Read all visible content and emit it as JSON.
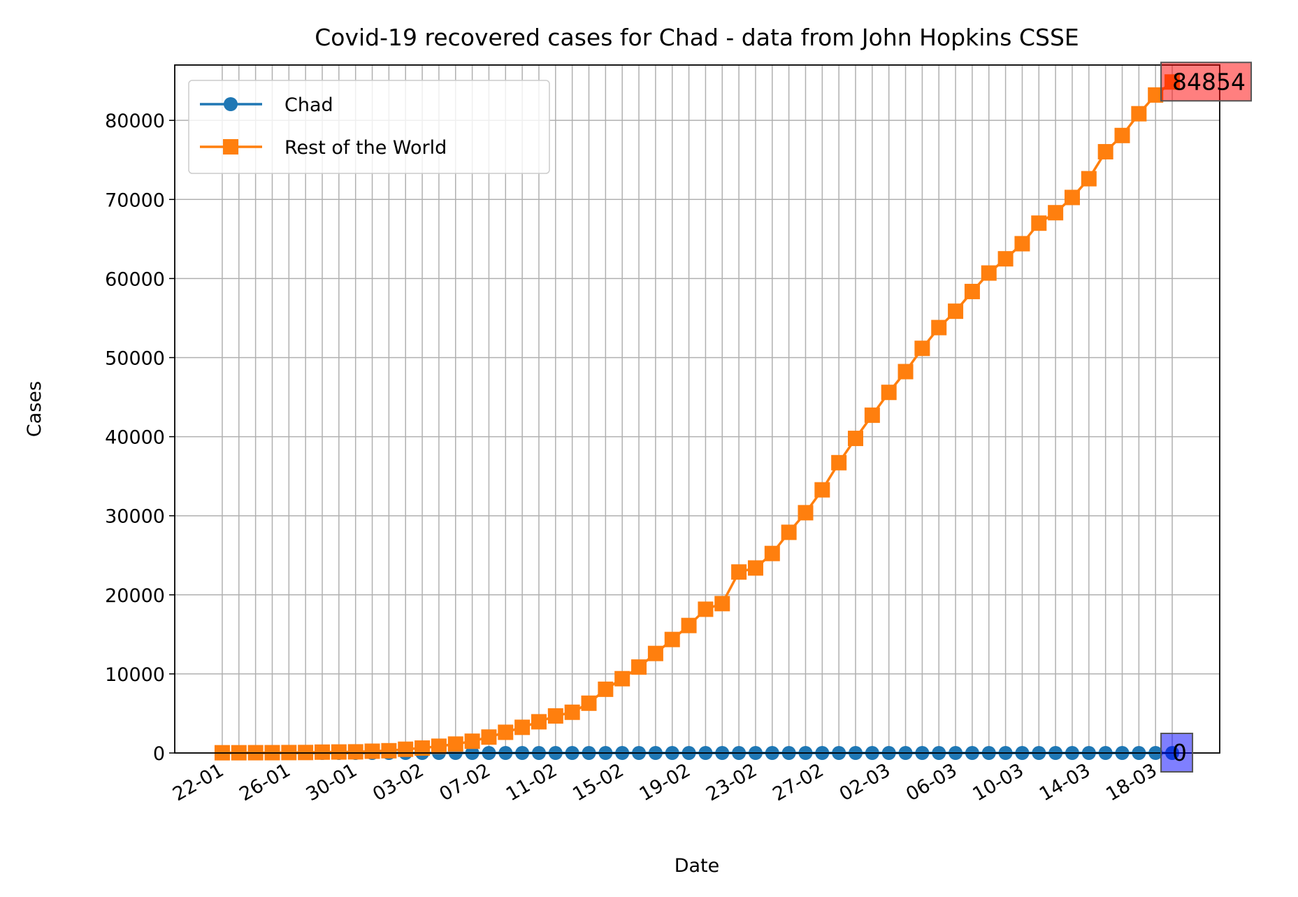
{
  "chart_data": {
    "type": "line",
    "title": "Covid-19 recovered cases for Chad - data from John Hopkins CSSE",
    "xlabel": "Date",
    "ylabel": "Cases",
    "categories": [
      "22-01",
      "23-01",
      "24-01",
      "25-01",
      "26-01",
      "27-01",
      "28-01",
      "29-01",
      "30-01",
      "31-01",
      "01-02",
      "02-02",
      "03-02",
      "04-02",
      "05-02",
      "06-02",
      "07-02",
      "08-02",
      "09-02",
      "10-02",
      "11-02",
      "12-02",
      "13-02",
      "14-02",
      "15-02",
      "16-02",
      "17-02",
      "18-02",
      "19-02",
      "20-02",
      "21-02",
      "22-02",
      "23-02",
      "24-02",
      "25-02",
      "26-02",
      "27-02",
      "28-02",
      "29-02",
      "01-03",
      "02-03",
      "03-03",
      "04-03",
      "05-03",
      "06-03",
      "07-03",
      "08-03",
      "09-03",
      "10-03",
      "11-03",
      "12-03",
      "13-03",
      "14-03",
      "15-03",
      "16-03",
      "17-03",
      "18-03",
      "19-03"
    ],
    "series": [
      {
        "name": "Chad",
        "color": "#1f77b4",
        "marker": "circle",
        "values": [
          0,
          0,
          0,
          0,
          0,
          0,
          0,
          0,
          0,
          0,
          0,
          0,
          0,
          0,
          0,
          0,
          0,
          0,
          0,
          0,
          0,
          0,
          0,
          0,
          0,
          0,
          0,
          0,
          0,
          0,
          0,
          0,
          0,
          0,
          0,
          0,
          0,
          0,
          0,
          0,
          0,
          0,
          0,
          0,
          0,
          0,
          0,
          0,
          0,
          0,
          0,
          0,
          0,
          0,
          0,
          0,
          0,
          0
        ]
      },
      {
        "name": "Rest of the World",
        "color": "#ff7f0e",
        "marker": "square",
        "values": [
          28,
          30,
          36,
          39,
          52,
          61,
          107,
          126,
          143,
          222,
          284,
          472,
          623,
          852,
          1124,
          1487,
          2011,
          2616,
          3244,
          3946,
          4683,
          5150,
          6295,
          8058,
          9395,
          10865,
          12583,
          14352,
          16121,
          18177,
          18890,
          22886,
          23394,
          25227,
          27905,
          30384,
          33277,
          36711,
          39782,
          42716,
          45602,
          48228,
          51170,
          53796,
          55865,
          58358,
          60694,
          62494,
          64404,
          67003,
          68324,
          70251,
          72624,
          76034,
          78088,
          80840,
          83207,
          84854
        ]
      }
    ],
    "ylim": [
      0,
      87000
    ],
    "yticks": [
      0,
      10000,
      20000,
      30000,
      40000,
      50000,
      60000,
      70000,
      80000
    ],
    "xtick_step": 4,
    "grid": true,
    "legend": "upper left"
  }
}
